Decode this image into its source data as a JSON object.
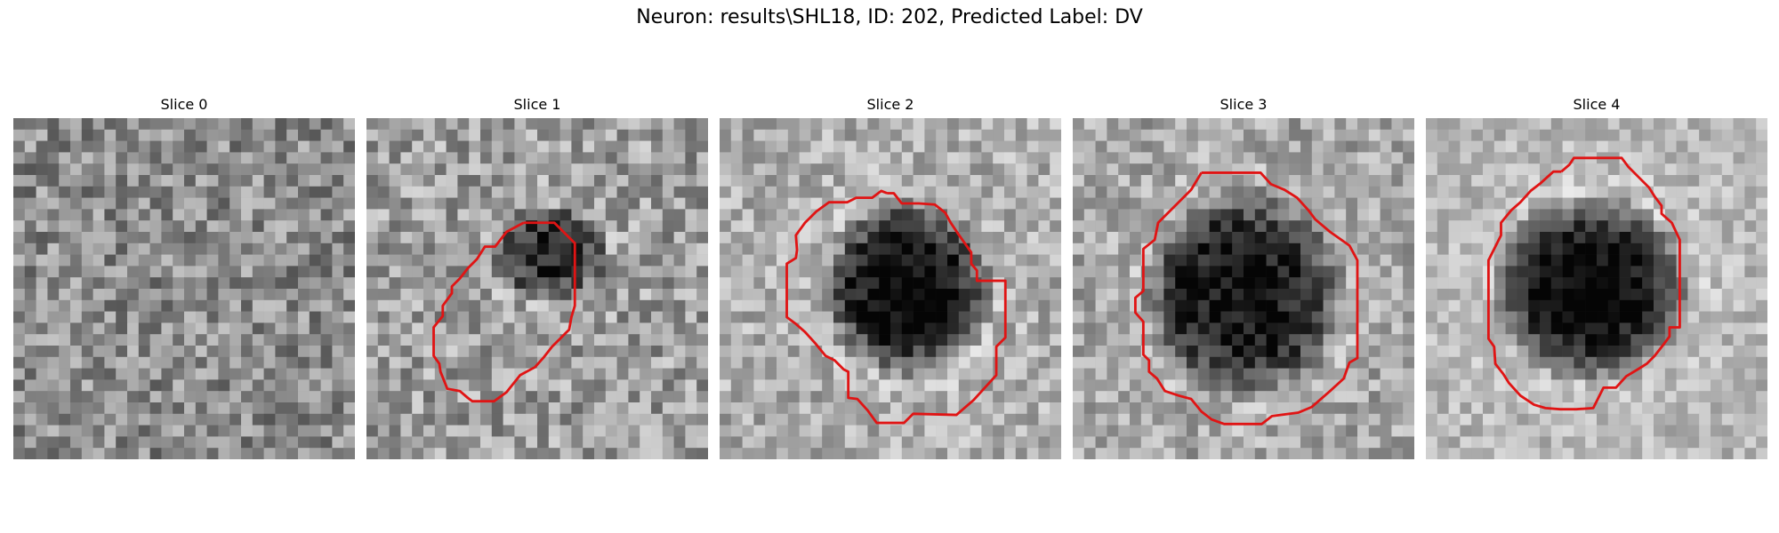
{
  "figure": {
    "title": "Neuron: results\\SHL18, ID: 202, Predicted Label: DV"
  },
  "slices": [
    {
      "label": "Slice 0",
      "has_contour": false
    },
    {
      "label": "Slice 1",
      "has_contour": true
    },
    {
      "label": "Slice 2",
      "has_contour": true
    },
    {
      "label": "Slice 3",
      "has_contour": true
    },
    {
      "label": "Slice 4",
      "has_contour": true
    }
  ],
  "colors": {
    "contour": "#e01414",
    "background": "#ffffff"
  }
}
